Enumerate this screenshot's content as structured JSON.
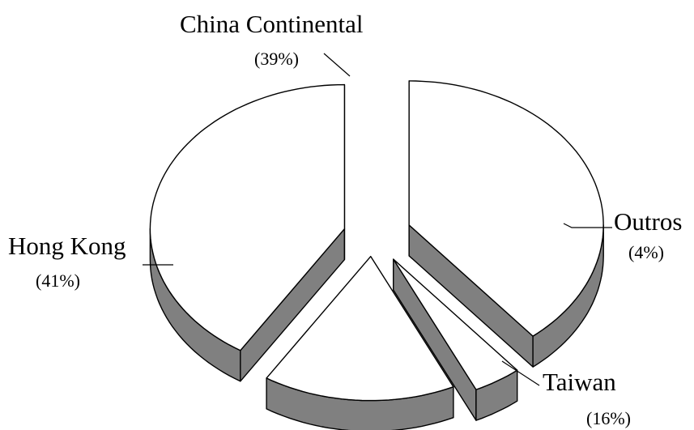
{
  "chart_data": {
    "type": "pie",
    "style": "3d-exploded",
    "slices": [
      {
        "label": "China Continental",
        "pct_label": "(39%)",
        "value": 39
      },
      {
        "label": "Outros",
        "pct_label": "(4%)",
        "value": 4
      },
      {
        "label": "Taiwan",
        "pct_label": "(16%)",
        "value": 16
      },
      {
        "label": "Hong Kong",
        "pct_label": "(41%)",
        "value": 41
      }
    ],
    "colors": {
      "face": "#ffffff",
      "side": "#808080",
      "edge": "#000000"
    }
  }
}
